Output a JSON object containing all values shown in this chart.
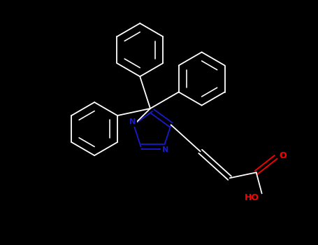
{
  "bg_color": "#000000",
  "bond_color": "#ffffff",
  "N_color": "#1a1acd",
  "O_color": "#ff0000",
  "bond_width": 1.3,
  "figsize": [
    4.55,
    3.5
  ],
  "dpi": 100,
  "xlim": [
    0,
    455
  ],
  "ylim": [
    0,
    350
  ]
}
